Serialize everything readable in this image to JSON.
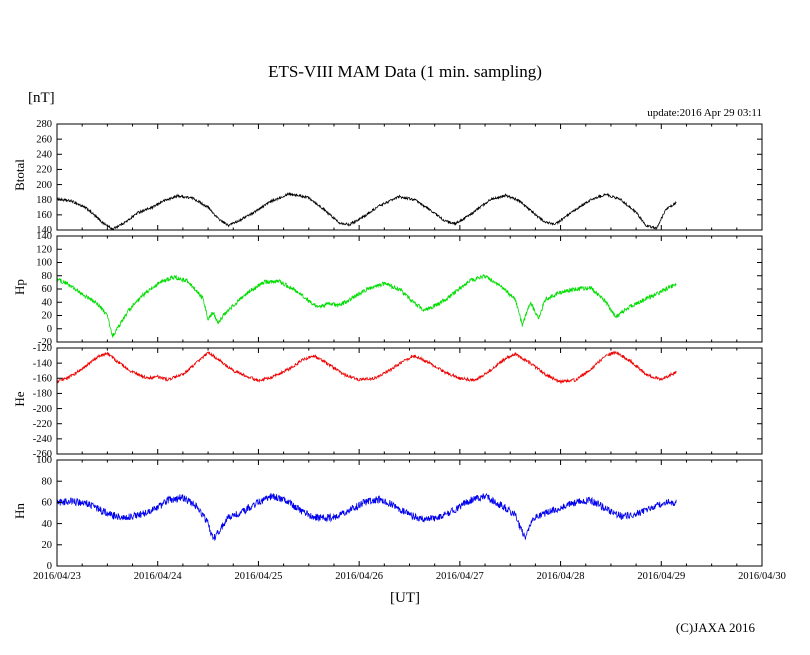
{
  "title": "ETS-VIII MAM Data (1 min. sampling)",
  "unit_label": "[nT]",
  "update_label": "update:2016 Apr 29 03:11",
  "x_axis_label": "[UT]",
  "copyright": "(C)JAXA 2016",
  "x_axis": {
    "tick_labels": [
      "2016/04/23",
      "2016/04/24",
      "2016/04/25",
      "2016/04/26",
      "2016/04/27",
      "2016/04/28",
      "2016/04/29",
      "2016/04/30"
    ],
    "range_days": [
      0,
      7
    ],
    "data_end_day": 6.15
  },
  "chart_data": [
    {
      "type": "line",
      "name": "Btotal",
      "color": "#000000",
      "ylim": [
        140,
        280
      ],
      "yticks": [
        280,
        260,
        240,
        220,
        200,
        180,
        160,
        140
      ],
      "noise": 1.6,
      "x_unit": "days since 2016/04/23 00:00 UT",
      "keypoints": [
        [
          0,
          181
        ],
        [
          0.15,
          178
        ],
        [
          0.3,
          168
        ],
        [
          0.45,
          150
        ],
        [
          0.55,
          141
        ],
        [
          0.7,
          152
        ],
        [
          0.8,
          163
        ],
        [
          0.95,
          170
        ],
        [
          1.05,
          178
        ],
        [
          1.2,
          185
        ],
        [
          1.35,
          182
        ],
        [
          1.5,
          170
        ],
        [
          1.6,
          155
        ],
        [
          1.7,
          146
        ],
        [
          1.8,
          152
        ],
        [
          1.95,
          163
        ],
        [
          2.1,
          176
        ],
        [
          2.3,
          188
        ],
        [
          2.5,
          183
        ],
        [
          2.65,
          167
        ],
        [
          2.8,
          150
        ],
        [
          2.9,
          147
        ],
        [
          3.05,
          158
        ],
        [
          3.2,
          172
        ],
        [
          3.4,
          184
        ],
        [
          3.55,
          180
        ],
        [
          3.7,
          167
        ],
        [
          3.85,
          152
        ],
        [
          3.95,
          148
        ],
        [
          4.1,
          160
        ],
        [
          4.3,
          180
        ],
        [
          4.45,
          186
        ],
        [
          4.6,
          178
        ],
        [
          4.75,
          160
        ],
        [
          4.85,
          150
        ],
        [
          4.95,
          148
        ],
        [
          5.1,
          162
        ],
        [
          5.3,
          180
        ],
        [
          5.45,
          187
        ],
        [
          5.6,
          180
        ],
        [
          5.75,
          163
        ],
        [
          5.85,
          146
        ],
        [
          5.95,
          142
        ],
        [
          6.05,
          168
        ],
        [
          6.15,
          176
        ]
      ]
    },
    {
      "type": "line",
      "name": "Hp",
      "color": "#00dd00",
      "ylim": [
        -20,
        140
      ],
      "yticks": [
        140,
        120,
        100,
        80,
        60,
        40,
        20,
        0,
        -20
      ],
      "noise": 3.2,
      "x_unit": "days since 2016/04/23 00:00 UT",
      "keypoints": [
        [
          0,
          75
        ],
        [
          0.1,
          68
        ],
        [
          0.25,
          52
        ],
        [
          0.4,
          38
        ],
        [
          0.5,
          20
        ],
        [
          0.55,
          -12
        ],
        [
          0.62,
          5
        ],
        [
          0.7,
          25
        ],
        [
          0.85,
          50
        ],
        [
          1.0,
          68
        ],
        [
          1.15,
          78
        ],
        [
          1.3,
          72
        ],
        [
          1.45,
          45
        ],
        [
          1.5,
          15
        ],
        [
          1.55,
          25
        ],
        [
          1.6,
          8
        ],
        [
          1.65,
          20
        ],
        [
          1.75,
          35
        ],
        [
          1.9,
          55
        ],
        [
          2.05,
          70
        ],
        [
          2.2,
          72
        ],
        [
          2.35,
          60
        ],
        [
          2.5,
          42
        ],
        [
          2.6,
          32
        ],
        [
          2.7,
          38
        ],
        [
          2.8,
          35
        ],
        [
          2.95,
          48
        ],
        [
          3.1,
          62
        ],
        [
          3.25,
          68
        ],
        [
          3.4,
          60
        ],
        [
          3.55,
          38
        ],
        [
          3.65,
          28
        ],
        [
          3.8,
          38
        ],
        [
          3.95,
          55
        ],
        [
          4.1,
          72
        ],
        [
          4.25,
          80
        ],
        [
          4.4,
          65
        ],
        [
          4.55,
          45
        ],
        [
          4.62,
          5
        ],
        [
          4.7,
          40
        ],
        [
          4.78,
          15
        ],
        [
          4.85,
          45
        ],
        [
          5.0,
          55
        ],
        [
          5.15,
          60
        ],
        [
          5.3,
          62
        ],
        [
          5.45,
          40
        ],
        [
          5.55,
          18
        ],
        [
          5.65,
          30
        ],
        [
          5.8,
          42
        ],
        [
          5.95,
          52
        ],
        [
          6.05,
          60
        ],
        [
          6.15,
          68
        ]
      ]
    },
    {
      "type": "line",
      "name": "He",
      "color": "#ee0000",
      "ylim": [
        -260,
        -120
      ],
      "yticks": [
        -120,
        -140,
        -160,
        -180,
        -200,
        -220,
        -240,
        -260
      ],
      "noise": 2.0,
      "x_unit": "days since 2016/04/23 00:00 UT",
      "keypoints": [
        [
          0,
          -165
        ],
        [
          0.1,
          -160
        ],
        [
          0.25,
          -148
        ],
        [
          0.4,
          -132
        ],
        [
          0.5,
          -127
        ],
        [
          0.6,
          -138
        ],
        [
          0.75,
          -152
        ],
        [
          0.9,
          -160
        ],
        [
          1.0,
          -158
        ],
        [
          1.1,
          -162
        ],
        [
          1.25,
          -155
        ],
        [
          1.4,
          -138
        ],
        [
          1.5,
          -126
        ],
        [
          1.6,
          -135
        ],
        [
          1.75,
          -150
        ],
        [
          1.9,
          -158
        ],
        [
          2.0,
          -163
        ],
        [
          2.15,
          -158
        ],
        [
          2.3,
          -148
        ],
        [
          2.45,
          -135
        ],
        [
          2.55,
          -130
        ],
        [
          2.7,
          -142
        ],
        [
          2.85,
          -155
        ],
        [
          3.0,
          -162
        ],
        [
          3.15,
          -160
        ],
        [
          3.3,
          -150
        ],
        [
          3.45,
          -136
        ],
        [
          3.55,
          -130
        ],
        [
          3.7,
          -140
        ],
        [
          3.85,
          -152
        ],
        [
          4.0,
          -160
        ],
        [
          4.15,
          -163
        ],
        [
          4.3,
          -150
        ],
        [
          4.45,
          -134
        ],
        [
          4.55,
          -128
        ],
        [
          4.7,
          -140
        ],
        [
          4.85,
          -155
        ],
        [
          5.0,
          -165
        ],
        [
          5.15,
          -162
        ],
        [
          5.3,
          -148
        ],
        [
          5.45,
          -130
        ],
        [
          5.55,
          -126
        ],
        [
          5.7,
          -138
        ],
        [
          5.85,
          -155
        ],
        [
          6.0,
          -162
        ],
        [
          6.1,
          -155
        ],
        [
          6.15,
          -152
        ]
      ]
    },
    {
      "type": "line",
      "name": "Hn",
      "color": "#0000ee",
      "ylim": [
        0,
        100
      ],
      "yticks": [
        100,
        80,
        60,
        40,
        20,
        0
      ],
      "noise": 3.4,
      "x_unit": "days since 2016/04/23 00:00 UT",
      "keypoints": [
        [
          0,
          60
        ],
        [
          0.15,
          61
        ],
        [
          0.3,
          59
        ],
        [
          0.45,
          52
        ],
        [
          0.6,
          46
        ],
        [
          0.75,
          47
        ],
        [
          0.9,
          50
        ],
        [
          1.0,
          55
        ],
        [
          1.1,
          62
        ],
        [
          1.25,
          65
        ],
        [
          1.4,
          55
        ],
        [
          1.5,
          40
        ],
        [
          1.55,
          25
        ],
        [
          1.62,
          35
        ],
        [
          1.7,
          45
        ],
        [
          1.85,
          52
        ],
        [
          2.0,
          60
        ],
        [
          2.15,
          66
        ],
        [
          2.3,
          60
        ],
        [
          2.45,
          50
        ],
        [
          2.6,
          45
        ],
        [
          2.75,
          46
        ],
        [
          2.9,
          52
        ],
        [
          3.05,
          60
        ],
        [
          3.2,
          63
        ],
        [
          3.35,
          57
        ],
        [
          3.5,
          48
        ],
        [
          3.65,
          44
        ],
        [
          3.8,
          46
        ],
        [
          3.95,
          53
        ],
        [
          4.1,
          62
        ],
        [
          4.25,
          66
        ],
        [
          4.4,
          58
        ],
        [
          4.55,
          48
        ],
        [
          4.65,
          25
        ],
        [
          4.72,
          45
        ],
        [
          4.85,
          50
        ],
        [
          5.0,
          55
        ],
        [
          5.15,
          60
        ],
        [
          5.3,
          62
        ],
        [
          5.45,
          54
        ],
        [
          5.6,
          47
        ],
        [
          5.75,
          49
        ],
        [
          5.9,
          55
        ],
        [
          6.05,
          60
        ],
        [
          6.15,
          60
        ]
      ]
    }
  ]
}
